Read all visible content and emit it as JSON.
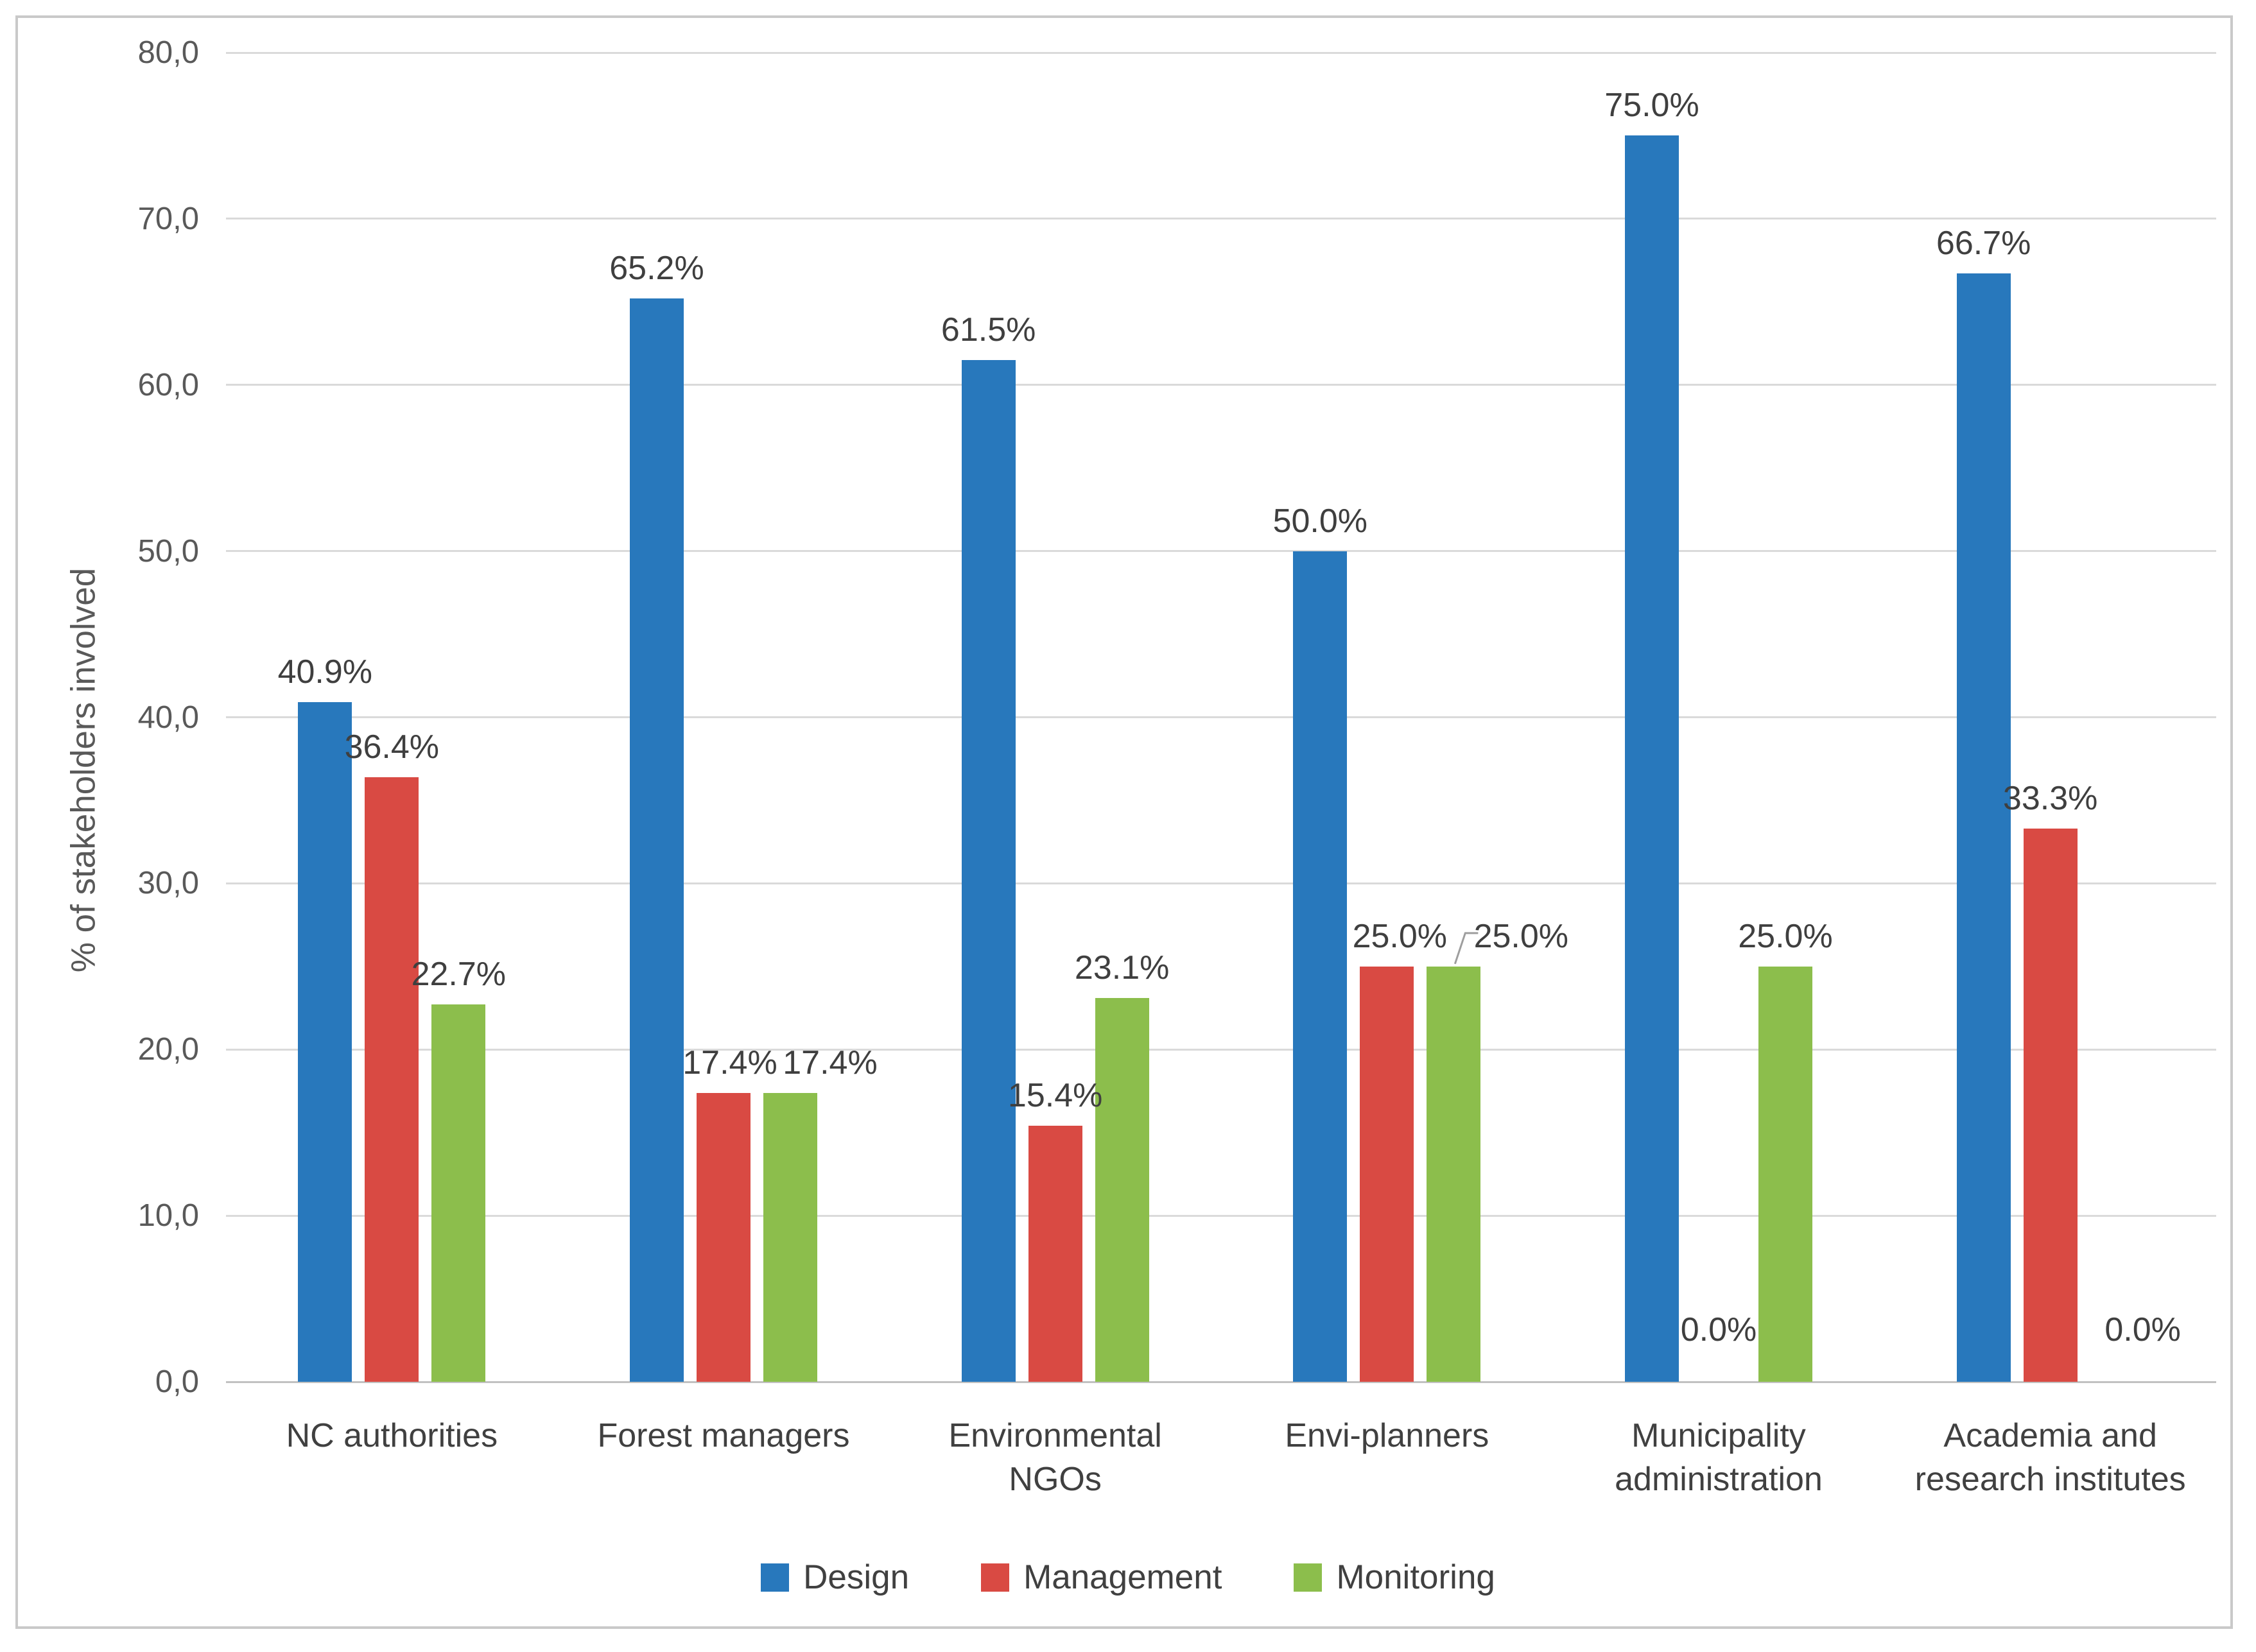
{
  "chart_data": {
    "type": "bar",
    "title": "",
    "ylabel": "% of stakeholders involved",
    "ylim": [
      0,
      80
    ],
    "y_tick_step": 10,
    "y_ticks": [
      "0,0",
      "10,0",
      "20,0",
      "30,0",
      "40,0",
      "50,0",
      "60,0",
      "70,0",
      "80,0"
    ],
    "grid": true,
    "legend_position": "bottom",
    "categories": [
      "NC authorities",
      "Forest managers",
      "Environmental\nNGOs",
      "Envi-planners",
      "Municipality\nadministration",
      "Academia and\nresearch institutes"
    ],
    "series": [
      {
        "name": "Design",
        "color": "#2878bc",
        "values": [
          40.9,
          65.2,
          61.5,
          50.0,
          75.0,
          66.7
        ],
        "labels": [
          "40.9%",
          "65.2%",
          "61.5%",
          "50.0%",
          "75.0%",
          "66.7%"
        ]
      },
      {
        "name": "Management",
        "color": "#d94a43",
        "values": [
          36.4,
          17.4,
          15.4,
          25.0,
          0.0,
          33.3
        ],
        "labels": [
          "36.4%",
          "17.4%",
          "15.4%",
          "25.0%",
          "0.0%",
          "33.3%"
        ]
      },
      {
        "name": "Monitoring",
        "color": "#8cbe4c",
        "values": [
          22.7,
          17.4,
          23.1,
          25.0,
          25.0,
          0.0
        ],
        "labels": [
          "22.7%",
          "17.4%",
          "23.1%",
          "25.0%",
          "25.0%",
          "0.0%"
        ]
      }
    ],
    "label_dx": [
      [
        0,
        0,
        0,
        0,
        0,
        0
      ],
      [
        0,
        10,
        0,
        20,
        0,
        0
      ],
      [
        0,
        62,
        0,
        105,
        0,
        40
      ]
    ],
    "leader_line": {
      "series": 2,
      "index": 3
    },
    "colors": {
      "gridline": "#dadada",
      "axis_line": "#c1c1c1",
      "frame_border": "#c9c9c9",
      "tick_text": "#595959",
      "label_text": "#3f3f3f",
      "leader": "#9e9e9e"
    }
  }
}
